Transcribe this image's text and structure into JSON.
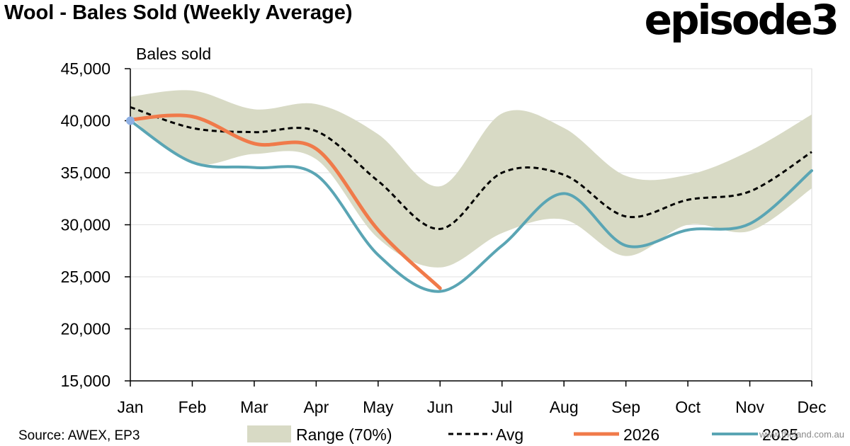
{
  "header": {
    "title": "Wool - Bales Sold (Weekly Average)",
    "logo_text": "episode3"
  },
  "source_note": "Source: AWEX, EP3",
  "watermark": "www.theland.com.au",
  "chart_data": {
    "type": "line",
    "ylabel": "Bales sold",
    "ylim": [
      15000,
      45000
    ],
    "yticks": [
      15000,
      20000,
      25000,
      30000,
      35000,
      40000,
      45000
    ],
    "ytick_labels": [
      "15,000",
      "20,000",
      "25,000",
      "30,000",
      "35,000",
      "40,000",
      "45,000"
    ],
    "categories": [
      "Jan",
      "Feb",
      "Mar",
      "Apr",
      "May",
      "Jun",
      "Jul",
      "Aug",
      "Sep",
      "Oct",
      "Nov",
      "Dec"
    ],
    "range": {
      "name": "Range (70%)",
      "upper": [
        42300,
        42900,
        41100,
        41600,
        38700,
        33700,
        40700,
        39300,
        34700,
        34800,
        37100,
        40600
      ],
      "lower": [
        40300,
        35900,
        36800,
        36300,
        28700,
        25900,
        29200,
        30500,
        27000,
        30000,
        29400,
        33500
      ]
    },
    "series": [
      {
        "name": "Avg",
        "style": "dashed",
        "color": "#000000",
        "values": [
          41300,
          39300,
          38900,
          39000,
          34200,
          29600,
          35000,
          34800,
          30800,
          32400,
          33200,
          37000
        ]
      },
      {
        "name": "2026",
        "style": "solid",
        "color": "#f07a4a",
        "values": [
          40100,
          40400,
          37800,
          37300,
          29500,
          23900,
          null,
          null,
          null,
          null,
          null,
          null
        ]
      },
      {
        "name": "2025",
        "style": "solid",
        "color": "#5aa5b4",
        "values": [
          40000,
          36000,
          35500,
          34800,
          27100,
          23600,
          28000,
          33000,
          28000,
          29500,
          30100,
          35200
        ]
      }
    ],
    "range_color": "#d8dac5",
    "grid": true,
    "legend_position": "bottom"
  }
}
